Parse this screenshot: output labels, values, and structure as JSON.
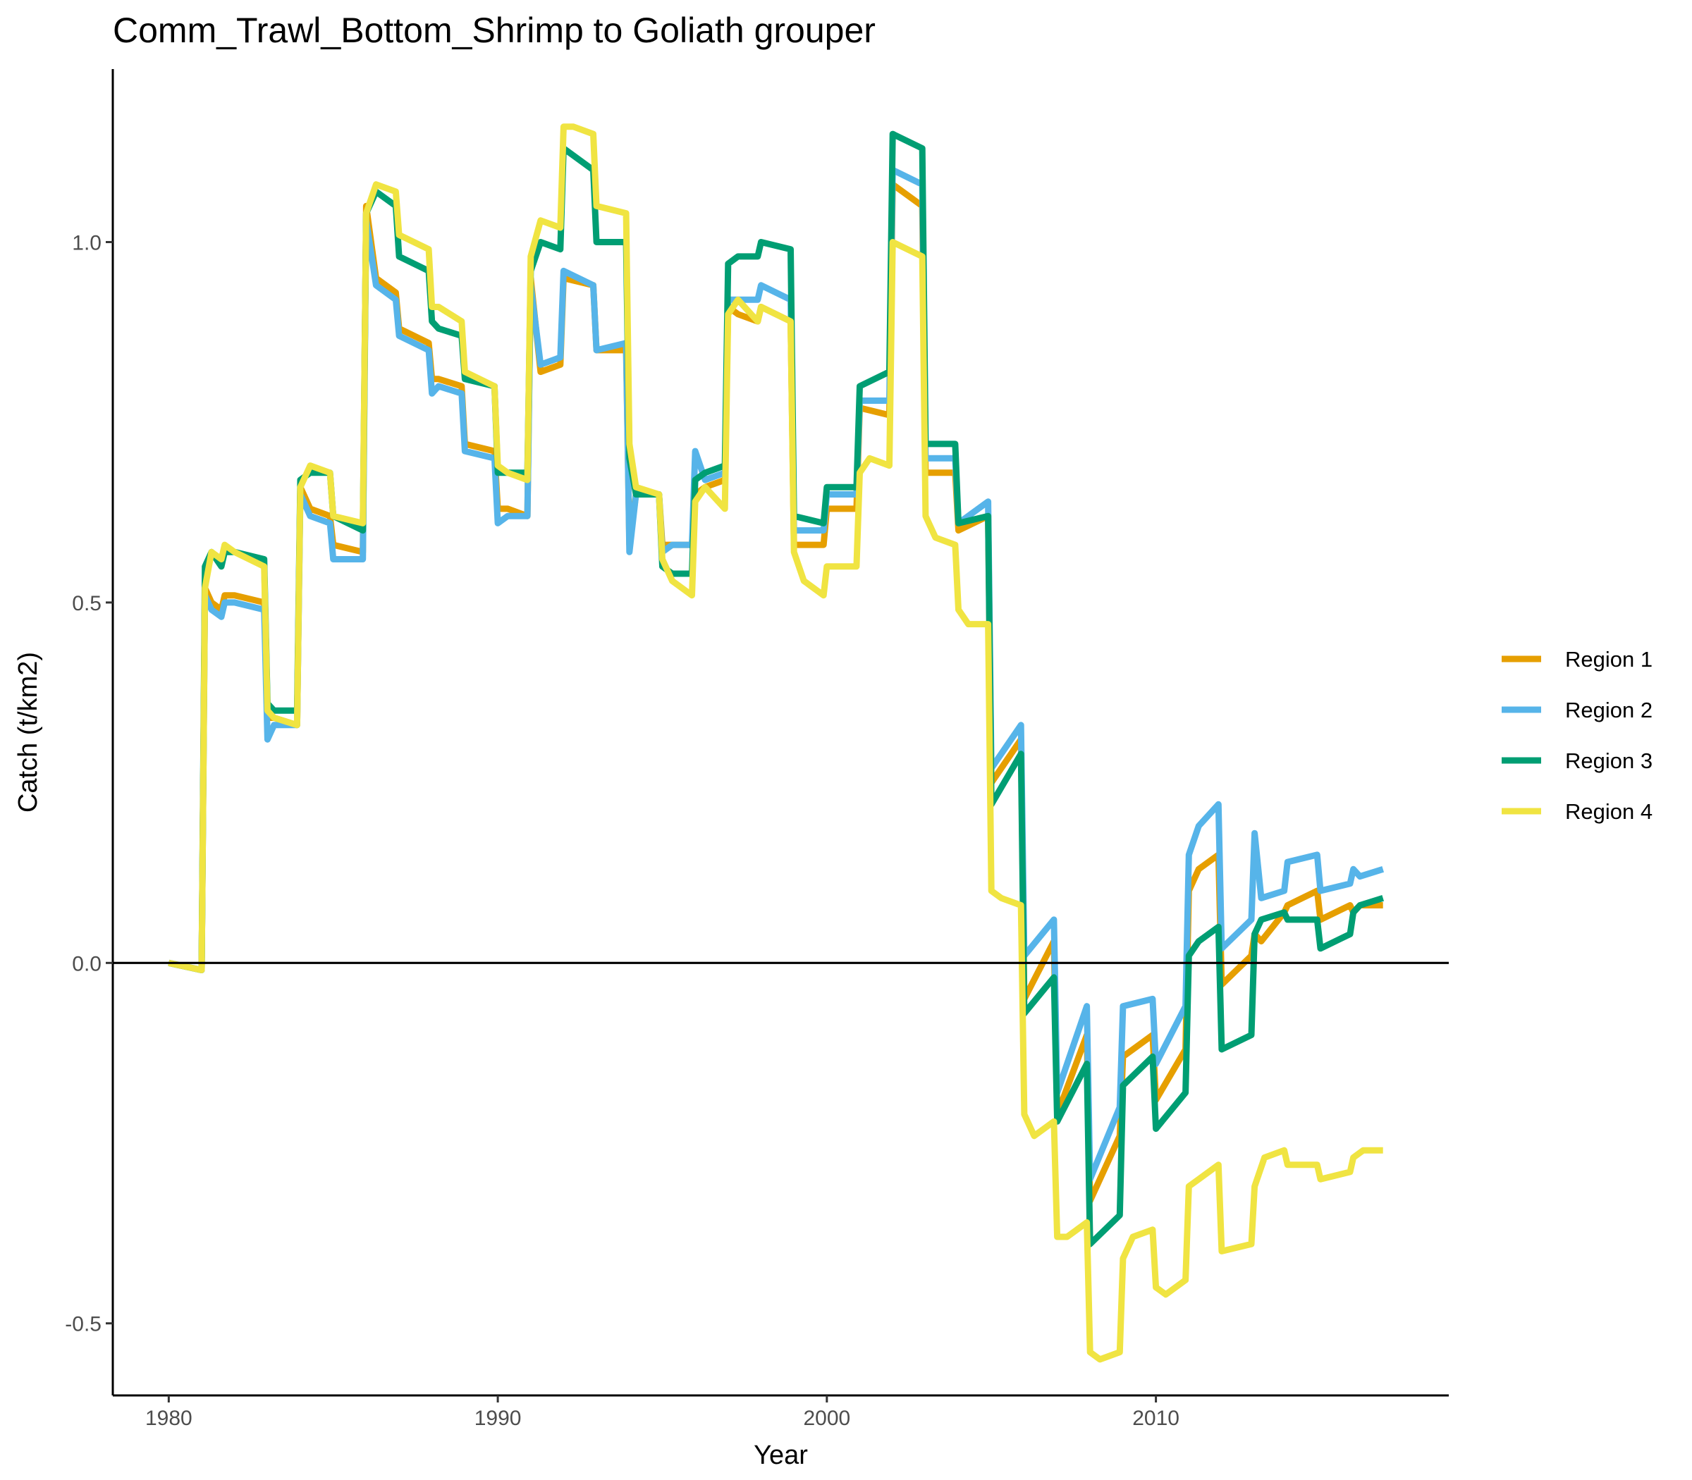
{
  "chart_data": {
    "type": "line",
    "title": "Comm_Trawl_Bottom_Shrimp to Goliath grouper",
    "xlabel": "Year",
    "ylabel": "Catch (t/km2)",
    "xlim": [
      1978.3,
      2018.9
    ],
    "ylim": [
      -0.6,
      1.24
    ],
    "xticks": [
      1980,
      1990,
      2000,
      2010
    ],
    "xtick_labels": [
      "1980",
      "1990",
      "2000",
      "2010"
    ],
    "yticks": [
      -0.5,
      0.0,
      0.5,
      1.0
    ],
    "ytick_labels": [
      "-0.5",
      "0.0",
      "0.5",
      "1.0"
    ],
    "zero_line": 0,
    "grid": false,
    "legend_position": "right",
    "series": [
      {
        "name": "Region 1",
        "color": "#E69F00",
        "x": [
          1980,
          1981,
          1981.1,
          1981.3,
          1981.6,
          1981.7,
          1982.0,
          1982.9,
          1983.0,
          1983.2,
          1983.9,
          1984.0,
          1984.3,
          1984.9,
          1985.0,
          1985.9,
          1986.0,
          1986.3,
          1986.9,
          1987.0,
          1987.9,
          1988.0,
          1988.2,
          1988.9,
          1989.0,
          1989.9,
          1990.0,
          1990.3,
          1990.9,
          1991.0,
          1991.3,
          1991.9,
          1992.0,
          1992.9,
          1993.0,
          1993.9,
          1994.0,
          1994.2,
          1994.9,
          1995.0,
          1995.3,
          1995.9,
          1996.0,
          1996.3,
          1996.9,
          1997.0,
          1997.3,
          1997.9,
          1998.0,
          1998.9,
          1999.0,
          1999.9,
          2000.0,
          2000.9,
          2001.0,
          2001.9,
          2002.0,
          2002.9,
          2003.0,
          2003.9,
          2004.0,
          2004.9,
          2005.0,
          2005.9,
          2006.0,
          2006.9,
          2007.0,
          2007.9,
          2008.0,
          2008.9,
          2009.0,
          2009.9,
          2010.0,
          2010.9,
          2011.0,
          2011.3,
          2011.9,
          2012.0,
          2012.9,
          2013.0,
          2013.2,
          2013.9,
          2014.0,
          2014.9,
          2015.0,
          2015.9,
          2016.0,
          2016.2,
          2016.9
        ],
        "y": [
          0.0,
          -0.01,
          0.52,
          0.5,
          0.49,
          0.51,
          0.51,
          0.5,
          0.34,
          0.34,
          0.33,
          0.66,
          0.63,
          0.62,
          0.58,
          0.57,
          1.05,
          0.95,
          0.93,
          0.88,
          0.86,
          0.81,
          0.81,
          0.8,
          0.72,
          0.71,
          0.63,
          0.63,
          0.62,
          0.95,
          0.82,
          0.83,
          0.95,
          0.94,
          0.85,
          0.85,
          0.58,
          0.65,
          0.65,
          0.58,
          0.58,
          0.58,
          0.65,
          0.66,
          0.67,
          0.91,
          0.9,
          0.89,
          0.91,
          0.89,
          0.58,
          0.58,
          0.63,
          0.63,
          0.77,
          0.76,
          1.08,
          1.05,
          0.68,
          0.68,
          0.6,
          0.62,
          0.25,
          0.31,
          -0.05,
          0.03,
          -0.21,
          -0.1,
          -0.33,
          -0.24,
          -0.13,
          -0.1,
          -0.19,
          -0.12,
          0.1,
          0.13,
          0.15,
          -0.03,
          0.01,
          0.04,
          0.03,
          0.07,
          0.08,
          0.1,
          0.06,
          0.08,
          0.07,
          0.08,
          0.08
        ]
      },
      {
        "name": "Region 2",
        "color": "#56B4E9",
        "x": [
          1980,
          1981,
          1981.1,
          1981.3,
          1981.6,
          1981.7,
          1982.0,
          1982.9,
          1983.0,
          1983.2,
          1983.9,
          1984.0,
          1984.3,
          1984.9,
          1985.0,
          1985.9,
          1986.0,
          1986.3,
          1986.9,
          1987.0,
          1987.9,
          1988.0,
          1988.2,
          1988.9,
          1989.0,
          1989.9,
          1990.0,
          1990.3,
          1990.9,
          1991.0,
          1991.3,
          1991.9,
          1992.0,
          1992.9,
          1993.0,
          1993.9,
          1994.0,
          1994.2,
          1994.9,
          1995.0,
          1995.3,
          1995.9,
          1996.0,
          1996.3,
          1996.9,
          1997.0,
          1997.3,
          1997.9,
          1998.0,
          1998.9,
          1999.0,
          1999.9,
          2000.0,
          2000.9,
          2001.0,
          2001.9,
          2002.0,
          2002.9,
          2003.0,
          2003.9,
          2004.0,
          2004.9,
          2005.0,
          2005.9,
          2006.0,
          2006.9,
          2007.0,
          2007.9,
          2008.0,
          2008.9,
          2009.0,
          2009.9,
          2010.0,
          2010.9,
          2011.0,
          2011.3,
          2011.9,
          2012.0,
          2012.9,
          2013.0,
          2013.2,
          2013.9,
          2014.0,
          2014.9,
          2015.0,
          2015.9,
          2016.0,
          2016.2,
          2016.9
        ],
        "y": [
          0.0,
          -0.01,
          0.51,
          0.49,
          0.48,
          0.5,
          0.5,
          0.49,
          0.31,
          0.33,
          0.33,
          0.65,
          0.62,
          0.61,
          0.56,
          0.56,
          1.03,
          0.94,
          0.92,
          0.87,
          0.85,
          0.79,
          0.8,
          0.79,
          0.71,
          0.7,
          0.61,
          0.62,
          0.62,
          0.94,
          0.83,
          0.84,
          0.96,
          0.94,
          0.85,
          0.86,
          0.57,
          0.65,
          0.65,
          0.57,
          0.58,
          0.58,
          0.71,
          0.67,
          0.68,
          0.92,
          0.92,
          0.92,
          0.94,
          0.92,
          0.6,
          0.6,
          0.65,
          0.65,
          0.78,
          0.78,
          1.1,
          1.08,
          0.7,
          0.7,
          0.61,
          0.64,
          0.27,
          0.33,
          0.01,
          0.06,
          -0.18,
          -0.06,
          -0.3,
          -0.2,
          -0.06,
          -0.05,
          -0.14,
          -0.06,
          0.15,
          0.19,
          0.22,
          0.02,
          0.06,
          0.18,
          0.09,
          0.1,
          0.14,
          0.15,
          0.1,
          0.11,
          0.13,
          0.12,
          0.13
        ]
      },
      {
        "name": "Region 3",
        "color": "#009E73",
        "x": [
          1980,
          1981,
          1981.1,
          1981.3,
          1981.6,
          1981.7,
          1982.0,
          1982.9,
          1983.0,
          1983.2,
          1983.9,
          1984.0,
          1984.3,
          1984.9,
          1985.0,
          1985.9,
          1986.0,
          1986.3,
          1986.9,
          1987.0,
          1987.9,
          1988.0,
          1988.2,
          1988.9,
          1989.0,
          1989.9,
          1990.0,
          1990.3,
          1990.9,
          1991.0,
          1991.3,
          1991.9,
          1992.0,
          1992.9,
          1993.0,
          1993.9,
          1994.0,
          1994.2,
          1994.9,
          1995.0,
          1995.3,
          1995.9,
          1996.0,
          1996.3,
          1996.9,
          1997.0,
          1997.3,
          1997.9,
          1998.0,
          1998.9,
          1999.0,
          1999.9,
          2000.0,
          2000.9,
          2001.0,
          2001.9,
          2002.0,
          2002.9,
          2003.0,
          2003.9,
          2004.0,
          2004.9,
          2005.0,
          2005.9,
          2006.0,
          2006.9,
          2007.0,
          2007.9,
          2008.0,
          2008.9,
          2009.0,
          2009.9,
          2010.0,
          2010.9,
          2011.0,
          2011.3,
          2011.9,
          2012.0,
          2012.9,
          2013.0,
          2013.2,
          2013.9,
          2014.0,
          2014.9,
          2015.0,
          2015.9,
          2016.0,
          2016.2,
          2016.9
        ],
        "y": [
          0.0,
          -0.01,
          0.55,
          0.57,
          0.55,
          0.57,
          0.57,
          0.56,
          0.36,
          0.35,
          0.35,
          0.67,
          0.68,
          0.68,
          0.62,
          0.6,
          1.04,
          1.07,
          1.05,
          0.98,
          0.96,
          0.89,
          0.88,
          0.87,
          0.81,
          0.8,
          0.68,
          0.68,
          0.68,
          0.96,
          1.0,
          0.99,
          1.13,
          1.1,
          1.0,
          1.0,
          0.7,
          0.65,
          0.65,
          0.55,
          0.54,
          0.54,
          0.67,
          0.68,
          0.69,
          0.97,
          0.98,
          0.98,
          1.0,
          0.99,
          0.62,
          0.61,
          0.66,
          0.66,
          0.8,
          0.82,
          1.15,
          1.13,
          0.72,
          0.72,
          0.61,
          0.62,
          0.22,
          0.29,
          -0.07,
          -0.02,
          -0.22,
          -0.14,
          -0.39,
          -0.35,
          -0.17,
          -0.13,
          -0.23,
          -0.18,
          0.01,
          0.03,
          0.05,
          -0.12,
          -0.1,
          0.04,
          0.06,
          0.07,
          0.06,
          0.06,
          0.02,
          0.04,
          0.07,
          0.08,
          0.09
        ]
      },
      {
        "name": "Region 4",
        "color": "#F0E442",
        "x": [
          1980,
          1981,
          1981.1,
          1981.3,
          1981.6,
          1981.7,
          1982.0,
          1982.9,
          1983.0,
          1983.2,
          1983.9,
          1984.0,
          1984.3,
          1984.9,
          1985.0,
          1985.9,
          1986.0,
          1986.3,
          1986.9,
          1987.0,
          1987.9,
          1988.0,
          1988.2,
          1988.9,
          1989.0,
          1989.9,
          1990.0,
          1990.3,
          1990.9,
          1991.0,
          1991.3,
          1991.9,
          1992.0,
          1992.3,
          1992.9,
          1993.0,
          1993.9,
          1994.0,
          1994.2,
          1994.9,
          1995.0,
          1995.3,
          1995.9,
          1996.0,
          1996.3,
          1996.9,
          1997.0,
          1997.3,
          1997.9,
          1998.0,
          1998.9,
          1999.0,
          1999.3,
          1999.9,
          2000.0,
          2000.9,
          2001.0,
          2001.3,
          2001.9,
          2002.0,
          2002.9,
          2003.0,
          2003.3,
          2003.9,
          2004.0,
          2004.3,
          2004.9,
          2005.0,
          2005.3,
          2005.9,
          2006.0,
          2006.3,
          2006.9,
          2007.0,
          2007.3,
          2007.9,
          2008.0,
          2008.3,
          2008.9,
          2009.0,
          2009.3,
          2009.9,
          2010.0,
          2010.3,
          2010.9,
          2011.0,
          2011.3,
          2011.9,
          2012.0,
          2012.9,
          2013.0,
          2013.3,
          2013.9,
          2014.0,
          2014.9,
          2015.0,
          2015.9,
          2016.0,
          2016.3,
          2016.9
        ],
        "y": [
          0.0,
          -0.01,
          0.52,
          0.57,
          0.56,
          0.58,
          0.57,
          0.55,
          0.35,
          0.34,
          0.33,
          0.66,
          0.69,
          0.68,
          0.62,
          0.61,
          1.04,
          1.08,
          1.07,
          1.01,
          0.99,
          0.91,
          0.91,
          0.89,
          0.82,
          0.8,
          0.69,
          0.68,
          0.67,
          0.98,
          1.03,
          1.02,
          1.16,
          1.16,
          1.15,
          1.05,
          1.04,
          0.72,
          0.66,
          0.65,
          0.56,
          0.53,
          0.51,
          0.64,
          0.66,
          0.63,
          0.9,
          0.92,
          0.89,
          0.91,
          0.89,
          0.57,
          0.53,
          0.51,
          0.55,
          0.55,
          0.68,
          0.7,
          0.69,
          1.0,
          0.98,
          0.62,
          0.59,
          0.58,
          0.49,
          0.47,
          0.47,
          0.1,
          0.09,
          0.08,
          -0.21,
          -0.24,
          -0.22,
          -0.38,
          -0.38,
          -0.36,
          -0.54,
          -0.55,
          -0.54,
          -0.41,
          -0.38,
          -0.37,
          -0.45,
          -0.46,
          -0.44,
          -0.31,
          -0.3,
          -0.28,
          -0.4,
          -0.39,
          -0.31,
          -0.27,
          -0.26,
          -0.28,
          -0.28,
          -0.3,
          -0.29,
          -0.27,
          -0.26,
          -0.26
        ]
      }
    ]
  }
}
